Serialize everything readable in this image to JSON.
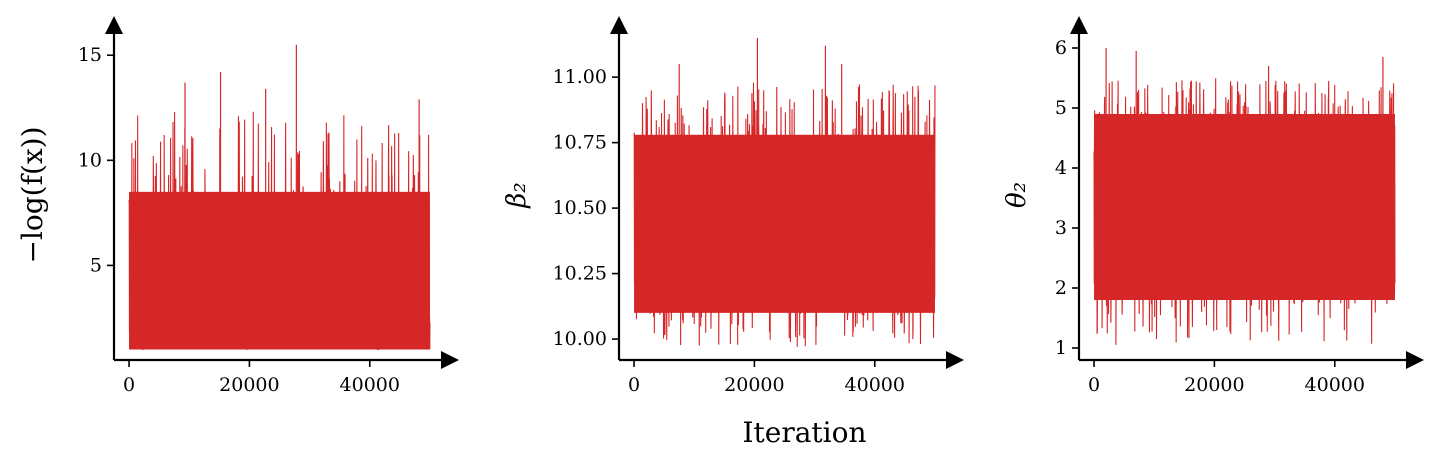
{
  "colors": {
    "trace": "#d62728",
    "axis": "#000000"
  },
  "chart_data": [
    {
      "type": "line",
      "ylabel": "−log(f(x))",
      "xlabel": "",
      "xlim": [
        -2500,
        52500
      ],
      "ylim": [
        0.5,
        16.2
      ],
      "xticks": [
        0,
        20000,
        40000
      ],
      "xtick_labels": [
        "0",
        "20000",
        "40000"
      ],
      "yticks": [
        5,
        10,
        15
      ],
      "ytick_labels": [
        "5",
        "10",
        "15"
      ],
      "series": [
        {
          "values_summary": {
            "n": 50000,
            "min": 1.0,
            "typical_low": 1.0,
            "typical_high": 8.5,
            "max": 15.5
          },
          "notable_peaks": [
            {
              "x": 27800,
              "y": 15.5
            },
            {
              "x": 15200,
              "y": 14.2
            },
            {
              "x": 9300,
              "y": 13.7
            },
            {
              "x": 22700,
              "y": 13.4
            },
            {
              "x": 48200,
              "y": 12.9
            }
          ]
        }
      ]
    },
    {
      "type": "line",
      "ylabel": "β₂",
      "xlabel": "Iteration",
      "xlim": [
        -2500,
        52500
      ],
      "ylim": [
        9.92,
        11.18
      ],
      "xticks": [
        0,
        20000,
        40000
      ],
      "xtick_labels": [
        "0",
        "20000",
        "40000"
      ],
      "yticks": [
        10.0,
        10.25,
        10.5,
        10.75,
        11.0
      ],
      "ytick_labels": [
        "10.00",
        "10.25",
        "10.50",
        "10.75",
        "11.00"
      ],
      "series": [
        {
          "values_summary": {
            "n": 50000,
            "min": 9.97,
            "typical_low": 10.1,
            "typical_high": 10.78,
            "max": 11.15
          },
          "notable_peaks": [
            {
              "x": 20500,
              "y": 11.15
            },
            {
              "x": 31800,
              "y": 11.12
            },
            {
              "x": 7500,
              "y": 11.05
            },
            {
              "x": 34500,
              "y": 11.05
            }
          ]
        }
      ]
    },
    {
      "type": "line",
      "ylabel": "θ₂",
      "xlabel": "",
      "xlim": [
        -2500,
        52500
      ],
      "ylim": [
        0.8,
        6.3
      ],
      "xticks": [
        0,
        20000,
        40000
      ],
      "xtick_labels": [
        "0",
        "20000",
        "40000"
      ],
      "yticks": [
        1,
        2,
        3,
        4,
        5,
        6
      ],
      "ytick_labels": [
        "1",
        "2",
        "3",
        "4",
        "5",
        "6"
      ],
      "series": [
        {
          "values_summary": {
            "n": 50000,
            "min": 1.05,
            "typical_low": 1.8,
            "typical_high": 4.9,
            "max": 6.0
          },
          "notable_peaks": [
            {
              "x": 2000,
              "y": 6.0
            },
            {
              "x": 7000,
              "y": 5.95
            },
            {
              "x": 48000,
              "y": 5.85
            },
            {
              "x": 29000,
              "y": 5.7
            }
          ]
        }
      ]
    }
  ]
}
